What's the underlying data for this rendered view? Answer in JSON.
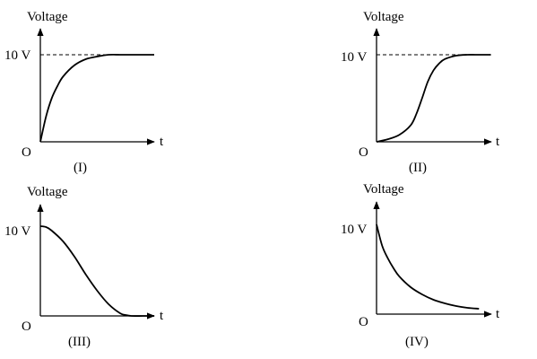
{
  "chart_data": [
    {
      "type": "line",
      "caption": "(I)",
      "ylabel": "Voltage",
      "xlabel": "t",
      "origin_label": "O",
      "level_label": "10 V",
      "level_value": 10,
      "dashed_level": true,
      "ylim": [
        0,
        10
      ],
      "xlim": [
        0,
        10
      ],
      "series": [
        {
          "x": [
            0,
            0.5,
            1,
            1.5,
            2,
            3,
            4,
            5,
            6,
            7,
            8,
            9,
            10
          ],
          "y": [
            0,
            2.9,
            5.0,
            6.4,
            7.5,
            8.8,
            9.5,
            9.8,
            10,
            10,
            10,
            10,
            10
          ]
        }
      ]
    },
    {
      "type": "line",
      "caption": "(II)",
      "ylabel": "Voltage",
      "xlabel": "t",
      "origin_label": "O",
      "level_label": "10 V",
      "level_value": 10,
      "dashed_level": true,
      "ylim": [
        0,
        10
      ],
      "xlim": [
        0,
        10
      ],
      "series": [
        {
          "x": [
            0,
            1,
            2,
            3,
            3.5,
            4,
            4.5,
            5,
            5.5,
            6,
            7,
            8,
            9,
            10
          ],
          "y": [
            0,
            0.3,
            0.8,
            1.9,
            3.2,
            5.0,
            6.9,
            8.2,
            9.0,
            9.5,
            9.9,
            10,
            10,
            10
          ]
        }
      ]
    },
    {
      "type": "line",
      "caption": "(III)",
      "ylabel": "Voltage",
      "xlabel": "t",
      "origin_label": "O",
      "level_label": "10 V",
      "level_value": 10,
      "dashed_level": false,
      "ylim": [
        0,
        10
      ],
      "xlim": [
        0,
        10
      ],
      "series": [
        {
          "x": [
            0,
            0.5,
            1,
            2,
            3,
            4,
            5,
            6,
            7,
            7.5,
            8,
            9,
            10
          ],
          "y": [
            10,
            9.9,
            9.5,
            8.3,
            6.6,
            4.6,
            2.8,
            1.3,
            0.3,
            0.1,
            0,
            0,
            0
          ]
        }
      ]
    },
    {
      "type": "line",
      "caption": "(IV)",
      "ylabel": "Voltage",
      "xlabel": "t",
      "origin_label": "O",
      "level_label": "10 V",
      "level_value": 10,
      "dashed_level": false,
      "ylim": [
        0,
        10
      ],
      "xlim": [
        0,
        10
      ],
      "series": [
        {
          "x": [
            0,
            0.5,
            1,
            1.5,
            2,
            3,
            4,
            5,
            6,
            7,
            8,
            9
          ],
          "y": [
            10,
            7.6,
            6.2,
            5.1,
            4.2,
            3.0,
            2.2,
            1.6,
            1.2,
            0.9,
            0.7,
            0.6
          ]
        }
      ]
    }
  ]
}
